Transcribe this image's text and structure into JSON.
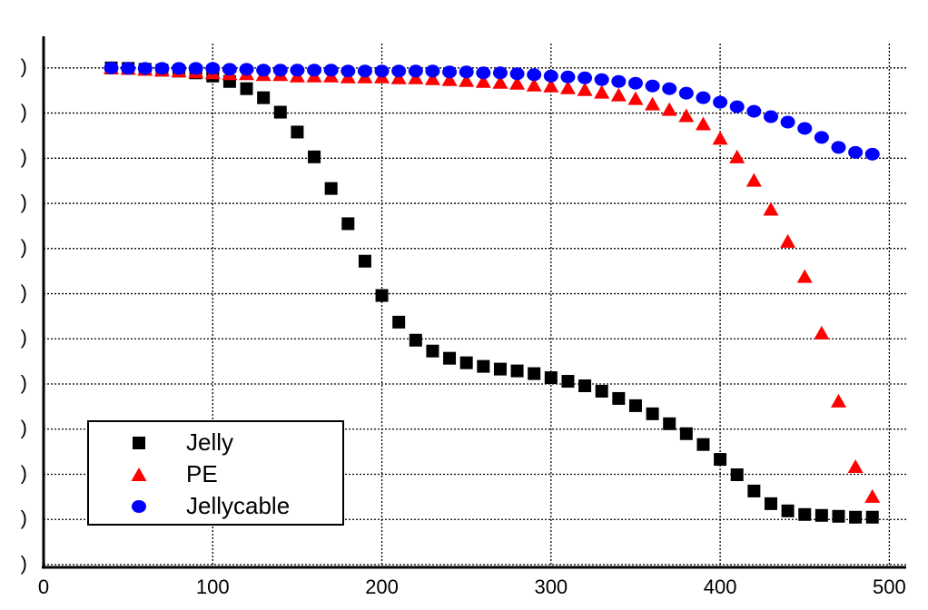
{
  "chart_data": {
    "type": "scatter",
    "x": [
      40,
      50,
      60,
      70,
      80,
      90,
      100,
      110,
      120,
      130,
      140,
      150,
      160,
      170,
      180,
      190,
      200,
      210,
      220,
      230,
      240,
      250,
      260,
      270,
      280,
      290,
      300,
      310,
      320,
      330,
      340,
      350,
      360,
      370,
      380,
      390,
      400,
      410,
      420,
      430,
      440,
      450,
      460,
      470,
      480,
      490
    ],
    "series": [
      {
        "name": "Jelly",
        "color": "#000000",
        "marker": "square",
        "values": [
          110,
          109.9,
          109.7,
          109.5,
          109.3,
          108.9,
          108.2,
          107,
          105.4,
          103.4,
          100.2,
          95.8,
          90.3,
          83.3,
          75.5,
          67.2,
          59.6,
          53.7,
          49.7,
          47.3,
          45.7,
          44.7,
          43.9,
          43.3,
          42.9,
          42.3,
          41.4,
          40.6,
          39.6,
          38.4,
          36.8,
          35.2,
          33.4,
          31.2,
          29.0,
          26.6,
          23.3,
          19.9,
          16.3,
          13.5,
          11.9,
          11.1,
          10.9,
          10.7,
          10.5,
          10.5
        ]
      },
      {
        "name": "PE",
        "color": "#ff0000",
        "marker": "triangle",
        "values": [
          110,
          109.9,
          109.7,
          109.5,
          109.3,
          109.1,
          108.9,
          108.7,
          108.7,
          108.5,
          108.5,
          108.2,
          108.2,
          108.2,
          108.0,
          108.0,
          108.0,
          107.8,
          107.8,
          107.6,
          107.4,
          107.2,
          107.0,
          106.8,
          106.6,
          106.2,
          106.0,
          105.6,
          105.2,
          104.6,
          104.0,
          103.2,
          102.0,
          100.8,
          99.4,
          97.6,
          94.4,
          90.3,
          85.1,
          78.7,
          71.6,
          63.8,
          51.3,
          36.2,
          21.7,
          15.1
        ]
      },
      {
        "name": "Jellycable",
        "color": "#0000ff",
        "marker": "circle",
        "values": [
          110,
          109.9,
          109.9,
          109.9,
          109.9,
          109.9,
          109.9,
          109.7,
          109.7,
          109.5,
          109.5,
          109.5,
          109.5,
          109.5,
          109.3,
          109.3,
          109.3,
          109.3,
          109.3,
          109.3,
          109.1,
          109.1,
          108.9,
          108.9,
          108.7,
          108.5,
          108.2,
          108.0,
          107.8,
          107.4,
          107.0,
          106.6,
          106.0,
          105.4,
          104.4,
          103.4,
          102.4,
          101.4,
          100.4,
          99.2,
          98.0,
          96.6,
          94.6,
          92.4,
          91.3,
          90.9
        ]
      }
    ],
    "xlim": [
      0,
      510
    ],
    "ylim": [
      0,
      117
    ],
    "xticks": [
      0,
      100,
      200,
      300,
      400,
      500
    ],
    "yticks": [
      {
        "value": 0,
        "label": ")"
      },
      {
        "value": 10,
        "label": ")"
      },
      {
        "value": 20,
        "label": ")"
      },
      {
        "value": 30,
        "label": ")"
      },
      {
        "value": 40,
        "label": ")"
      },
      {
        "value": 50,
        "label": ")"
      },
      {
        "value": 60,
        "label": ")"
      },
      {
        "value": 70,
        "label": ")"
      },
      {
        "value": 80,
        "label": ")"
      },
      {
        "value": 90,
        "label": ")"
      },
      {
        "value": 100,
        "label": ")"
      },
      {
        "value": 110,
        "label": ")"
      }
    ],
    "grid": true,
    "legend": "lower left"
  }
}
